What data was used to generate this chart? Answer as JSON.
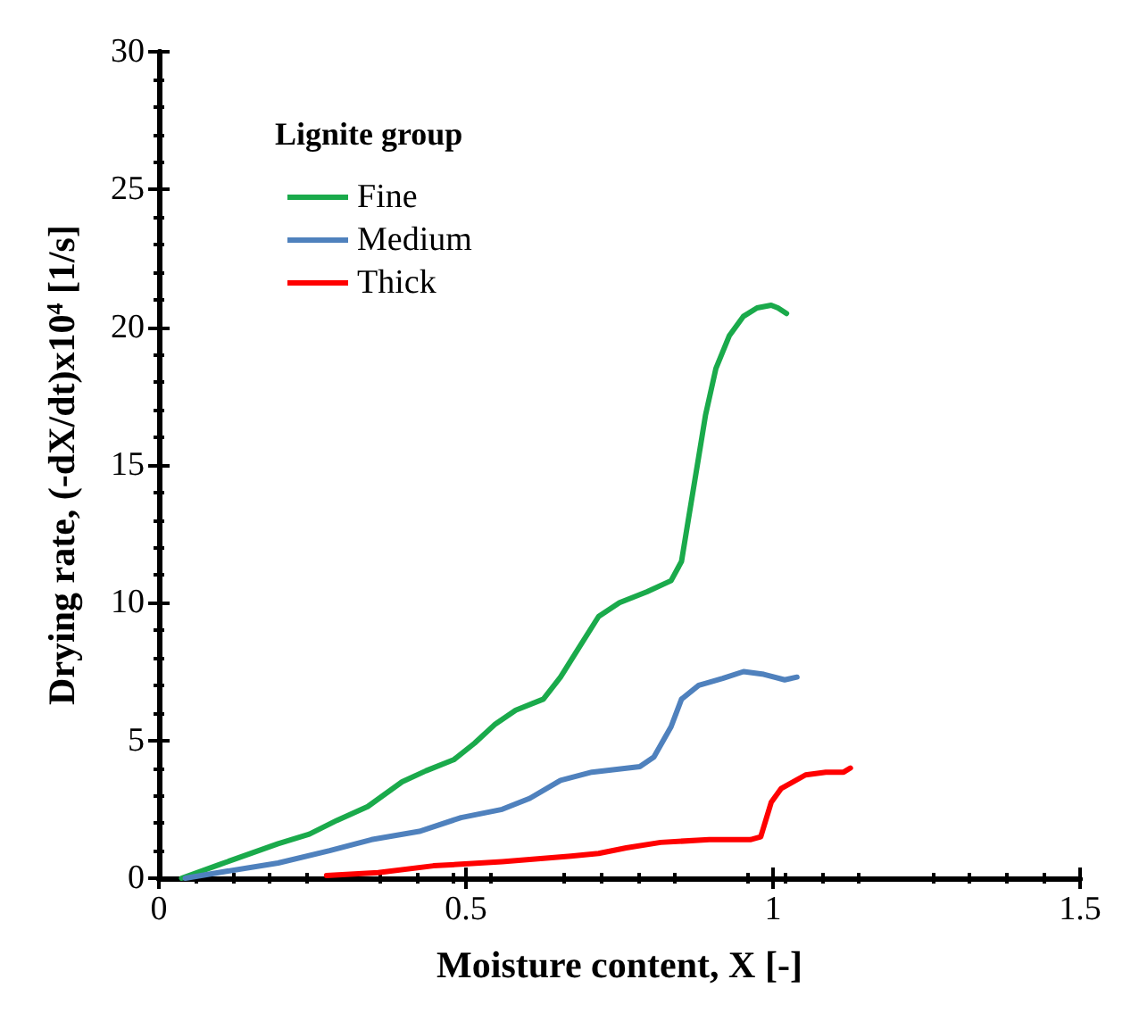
{
  "chart_data": {
    "type": "line",
    "xlabel": "Moisture content, X [-]",
    "ylabel": "Drying rate, (-dX/dt)x10$^{4}$ [1/s]",
    "legend_title": "Lignite group",
    "legend": "top left",
    "grid": false,
    "marker": "none",
    "line_style": "solid",
    "xlim": [
      0,
      1.5
    ],
    "xticks": [
      0,
      0.5,
      1,
      1.5
    ],
    "ylim": [
      0,
      30
    ],
    "yticks": [
      0,
      5,
      10,
      15,
      20,
      25,
      30
    ],
    "series": [
      {
        "name": "Fine",
        "color": "#1aaa4b",
        "x": [
          0.037,
          0.099,
          0.194,
          0.245,
          0.29,
          0.34,
          0.396,
          0.435,
          0.48,
          0.514,
          0.548,
          0.581,
          0.626,
          0.654,
          0.682,
          0.716,
          0.75,
          0.795,
          0.834,
          0.851,
          0.862,
          0.879,
          0.89,
          0.907,
          0.929,
          0.952,
          0.974,
          0.997,
          1.008,
          1.022
        ],
        "values": [
          0,
          0.5,
          1.25,
          1.6,
          2.1,
          2.6,
          3.5,
          3.9,
          4.3,
          4.9,
          5.6,
          6.1,
          6.5,
          7.3,
          8.3,
          9.5,
          10.0,
          10.4,
          10.8,
          11.5,
          13.0,
          15.3,
          16.8,
          18.5,
          19.7,
          20.4,
          20.7,
          20.8,
          20.7,
          20.5
        ]
      },
      {
        "name": "Medium",
        "color": "#4f81bd",
        "x": [
          0.043,
          0.11,
          0.194,
          0.278,
          0.346,
          0.424,
          0.492,
          0.559,
          0.604,
          0.654,
          0.705,
          0.783,
          0.806,
          0.834,
          0.851,
          0.879,
          0.918,
          0.952,
          0.985,
          1.019,
          1.039
        ],
        "values": [
          0,
          0.25,
          0.55,
          1.0,
          1.4,
          1.7,
          2.2,
          2.5,
          2.9,
          3.55,
          3.85,
          4.05,
          4.4,
          5.5,
          6.5,
          7.0,
          7.25,
          7.5,
          7.4,
          7.2,
          7.3
        ]
      },
      {
        "name": "Thick",
        "color": "#ff0000",
        "x": [
          0.273,
          0.357,
          0.447,
          0.559,
          0.671,
          0.716,
          0.761,
          0.817,
          0.896,
          0.963,
          0.98,
          0.997,
          1.013,
          1.053,
          1.086,
          1.115,
          1.126
        ],
        "values": [
          0.1,
          0.2,
          0.45,
          0.6,
          0.8,
          0.9,
          1.1,
          1.3,
          1.4,
          1.4,
          1.5,
          2.75,
          3.25,
          3.75,
          3.85,
          3.85,
          4.0
        ]
      }
    ]
  }
}
